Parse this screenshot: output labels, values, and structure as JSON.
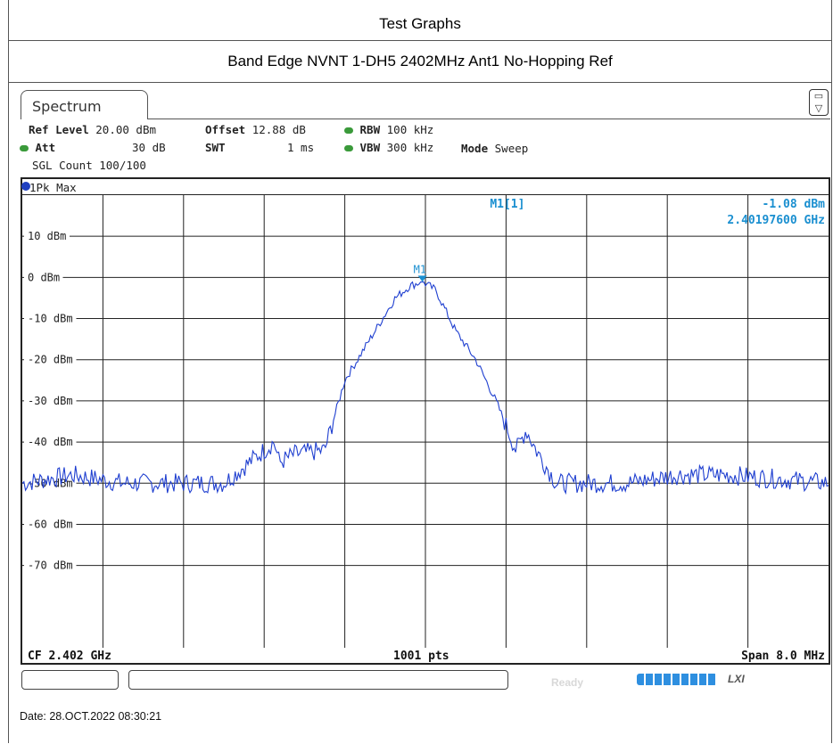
{
  "page": {
    "title": "Test Graphs",
    "subtitle": "Band Edge NVNT 1-DH5 2402MHz Ant1 No-Hopping Ref",
    "date": "Date: 28.OCT.2022  08:30:21"
  },
  "instrument": {
    "tab_label": "Spectrum",
    "ref_level_label": "Ref Level",
    "ref_level": "20.00 dBm",
    "offset_label": "Offset",
    "offset": "12.88 dB",
    "rbw_label": "RBW",
    "rbw": "100 kHz",
    "att_label": "Att",
    "att": "30 dB",
    "swt_label": "SWT",
    "swt": "1 ms",
    "vbw_label": "VBW",
    "vbw": "300 kHz",
    "mode_label": "Mode",
    "mode": "Sweep",
    "sgl_count": "SGL Count 100/100",
    "trace_label": "1Pk Max",
    "marker_name": "M1[1]",
    "marker_level": "-1.08 dBm",
    "marker_freq": "2.40197600 GHz",
    "marker_tag": "M1",
    "status_cf": "CF 2.402 GHz",
    "status_pts": "1001 pts",
    "status_span": "Span 8.0 MHz",
    "ready": "Ready",
    "lxi": "LXI",
    "colors": {
      "trace": "#1f3fd0",
      "marker": "#1a8fd0",
      "grid": "#222222"
    }
  },
  "chart_data": {
    "type": "line",
    "xlabel": "",
    "ylabel": "",
    "x_range_ghz": [
      2.398,
      2.406
    ],
    "ylim": [
      -90,
      20
    ],
    "yticks": [
      10,
      0,
      -10,
      -20,
      -30,
      -40,
      -50,
      -60,
      -70
    ],
    "ytick_labels": [
      "10 dBm",
      "0 dBm",
      "-10 dBm",
      "-20 dBm",
      "-30 dBm",
      "-40 dBm",
      "-50 dBm",
      "-60 dBm",
      "-70 dBm"
    ],
    "grid": true,
    "series": [
      {
        "x": [
          2.398,
          2.3985,
          2.399,
          2.3995,
          2.4,
          2.4005,
          2.40055,
          2.4007,
          2.401,
          2.4012,
          2.4015,
          2.4017,
          2.40185,
          2.40197,
          2.4021,
          2.4023,
          2.4025,
          2.4027,
          2.4029,
          2.403,
          2.4031,
          2.4033,
          2.4035,
          2.404,
          2.4045,
          2.405,
          2.4055,
          2.406
        ],
        "y": [
          -50,
          -48,
          -50,
          -50,
          -50,
          -40,
          -45,
          -43,
          -42,
          -25,
          -13,
          -5,
          -2,
          -1.08,
          -3,
          -13,
          -20,
          -30,
          -42,
          -37,
          -42,
          -50,
          -50,
          -50,
          -48,
          -48,
          -49,
          -50
        ]
      }
    ],
    "marker": {
      "x": 2.40197,
      "y": -1.08
    }
  }
}
